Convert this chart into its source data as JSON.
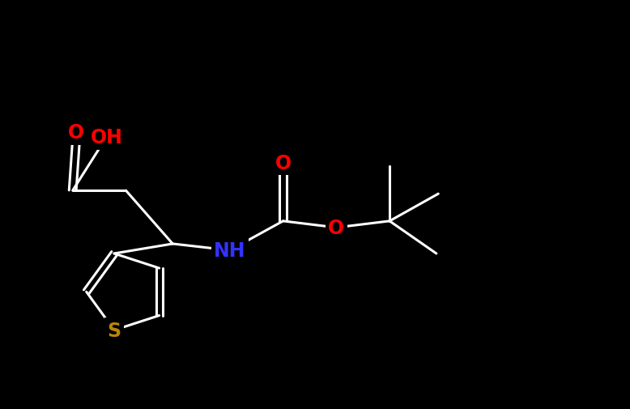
{
  "background_color": "#000000",
  "bond_color": "#ffffff",
  "atom_colors": {
    "O": "#ff0000",
    "N": "#3333ff",
    "S": "#b8860b",
    "C": "#ffffff",
    "H": "#ffffff"
  },
  "bond_width": 2.2,
  "font_size_atom": 17
}
